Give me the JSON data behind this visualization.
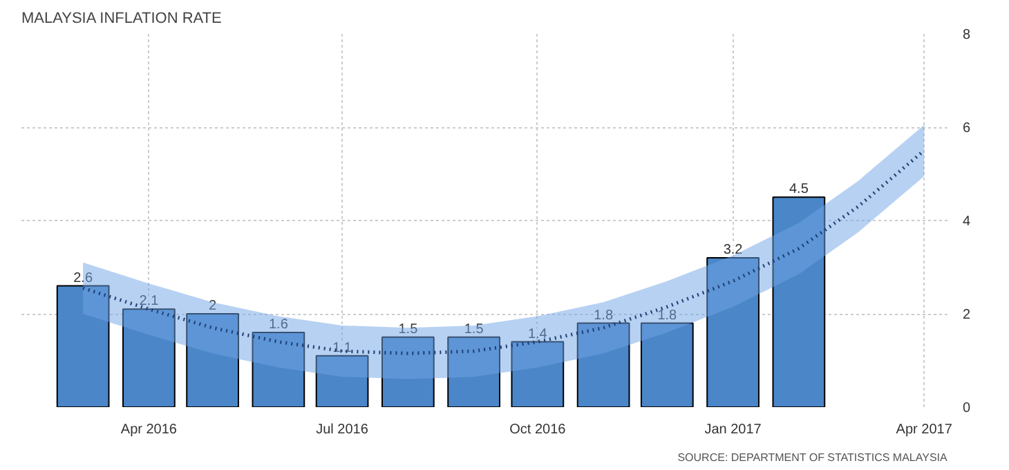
{
  "chart_data": {
    "type": "bar",
    "title": "MALAYSIA INFLATION RATE",
    "x": [
      "2016-03",
      "2016-04",
      "2016-05",
      "2016-06",
      "2016-07",
      "2016-08",
      "2016-09",
      "2016-10",
      "2016-11",
      "2016-12",
      "2017-01",
      "2017-02"
    ],
    "series": [
      {
        "color": "#4a86c8",
        "values": [
          2.6,
          2.1,
          2,
          1.6,
          1.1,
          1.5,
          1.5,
          1.4,
          1.8,
          1.8,
          3.2,
          4.5
        ],
        "value_labels": [
          "2.6",
          "2.1",
          "2",
          "1.6",
          "1.1",
          "1.5",
          "1.5",
          "1.4",
          "1.8",
          "1.8",
          "3.2",
          "4.5"
        ]
      },
      {
        "type": "line",
        "color": "#1f3f73",
        "line_style": "dotted",
        "x": [
          "2016-03",
          "2016-04",
          "2016-05",
          "2016-06",
          "2016-07",
          "2016-08",
          "2016-09",
          "2016-10",
          "2016-11",
          "2016-12",
          "2017-01",
          "2017-02",
          "2017-03",
          "2017-04"
        ],
        "values": [
          2.55,
          2.1,
          1.7,
          1.4,
          1.2,
          1.15,
          1.2,
          1.4,
          1.7,
          2.15,
          2.7,
          3.4,
          4.3,
          5.5
        ],
        "lower": [
          2.0,
          1.55,
          1.15,
          0.85,
          0.65,
          0.6,
          0.65,
          0.85,
          1.15,
          1.6,
          2.15,
          2.85,
          3.75,
          4.95
        ],
        "upper": [
          3.1,
          2.65,
          2.25,
          1.95,
          1.75,
          1.7,
          1.75,
          1.95,
          2.25,
          2.7,
          3.25,
          3.95,
          4.85,
          6.05
        ]
      }
    ],
    "xlim": [
      "2016-02-01",
      "2017-04-12"
    ],
    "xticks": [
      {
        "value": "2016-04-01",
        "label": "Apr 2016"
      },
      {
        "value": "2016-07-01",
        "label": "Jul 2016"
      },
      {
        "value": "2016-10-01",
        "label": "Oct 2016"
      },
      {
        "value": "2017-01-01",
        "label": "Jan 2017"
      },
      {
        "value": "2017-04-01",
        "label": "Apr 2017"
      }
    ],
    "ylim": [
      0,
      8
    ],
    "yticks": [
      0,
      2,
      4,
      6,
      8
    ],
    "grid": true,
    "annotations": [
      "SOURCE: DEPARTMENT OF STATISTICS MALAYSIA"
    ]
  }
}
